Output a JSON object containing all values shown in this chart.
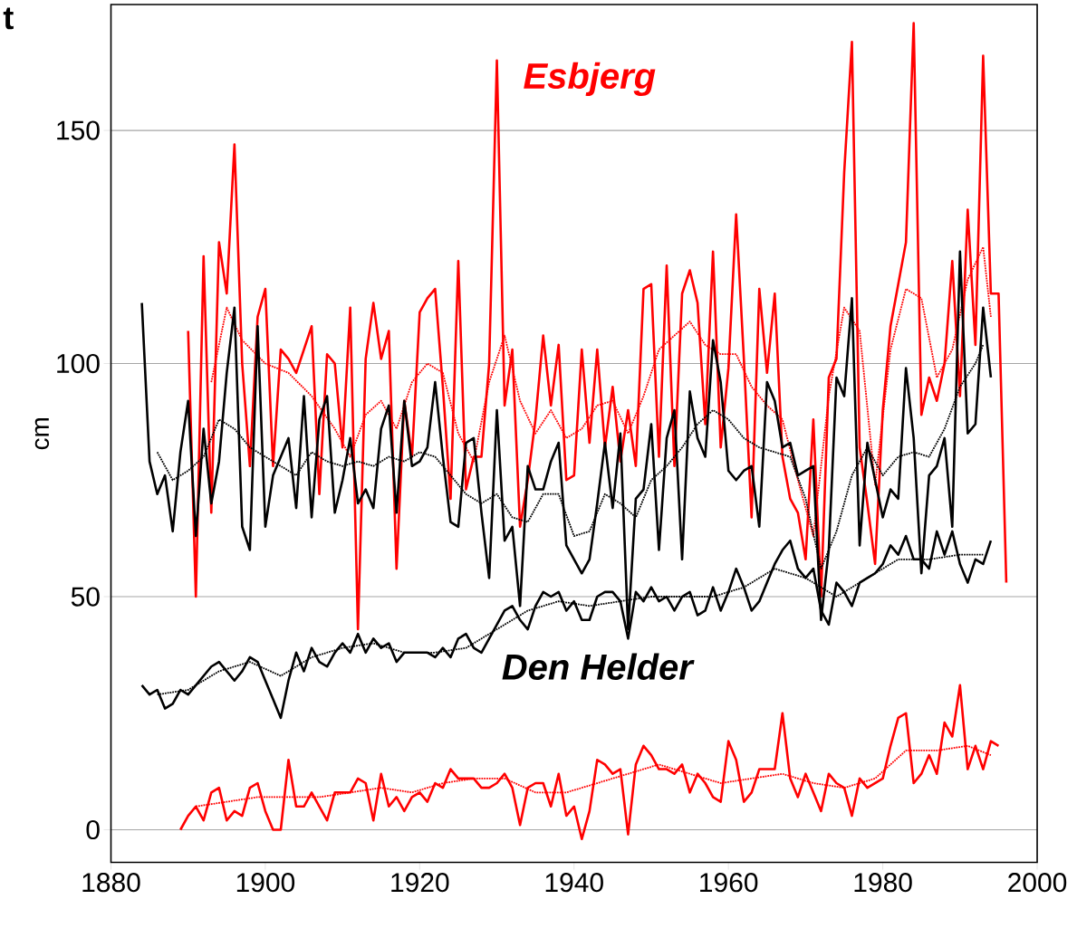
{
  "chart_data": {
    "type": "line",
    "ylabel": "cm",
    "xlim": [
      1880,
      2000
    ],
    "ylim": [
      -7,
      177
    ],
    "xticks": [
      1880,
      1900,
      1920,
      1940,
      1960,
      1980,
      2000
    ],
    "yticks": [
      0,
      50,
      100,
      150
    ],
    "grid": "y",
    "annotations": [
      "t"
    ],
    "series": [
      {
        "name": "Esbjerg",
        "color": "#ff0000",
        "line_style": "solid",
        "x": [
          1890,
          1891,
          1892,
          1893,
          1894,
          1895,
          1896,
          1897,
          1898,
          1899,
          1900,
          1901,
          1902,
          1903,
          1904,
          1905,
          1906,
          1907,
          1908,
          1909,
          1910,
          1911,
          1912,
          1913,
          1914,
          1915,
          1916,
          1917,
          1918,
          1919,
          1920,
          1921,
          1922,
          1923,
          1924,
          1925,
          1926,
          1927,
          1928,
          1929,
          1930,
          1931,
          1932,
          1933,
          1934,
          1935,
          1936,
          1937,
          1938,
          1939,
          1940,
          1941,
          1942,
          1943,
          1944,
          1945,
          1946,
          1947,
          1948,
          1949,
          1950,
          1951,
          1952,
          1953,
          1954,
          1955,
          1956,
          1957,
          1958,
          1959,
          1960,
          1961,
          1962,
          1963,
          1964,
          1965,
          1966,
          1967,
          1968,
          1969,
          1970,
          1971,
          1972,
          1973,
          1974,
          1975,
          1976,
          1977,
          1978,
          1979,
          1980,
          1981,
          1982,
          1983,
          1984,
          1985,
          1986,
          1987,
          1988,
          1989,
          1990,
          1991,
          1992,
          1993,
          1994,
          1995,
          1996
        ],
        "values": [
          107,
          50,
          123,
          68,
          126,
          115,
          147,
          100,
          78,
          110,
          116,
          78,
          103,
          101,
          98,
          103,
          108,
          72,
          102,
          100,
          82,
          112,
          43,
          101,
          113,
          101,
          107,
          56,
          92,
          80,
          111,
          114,
          116,
          95,
          71,
          122,
          73,
          80,
          80,
          100,
          165,
          91,
          103,
          65,
          75,
          88,
          106,
          91,
          104,
          75,
          76,
          103,
          83,
          103,
          82,
          95,
          79,
          90,
          78,
          116,
          117,
          80,
          121,
          78,
          115,
          120,
          113,
          87,
          124,
          82,
          99,
          132,
          101,
          67,
          116,
          98,
          115,
          80,
          71,
          68,
          58,
          88,
          50,
          97,
          101,
          141,
          169,
          82,
          70,
          57,
          90,
          108,
          117,
          126,
          173,
          89,
          97,
          92,
          100,
          122,
          93,
          133,
          104,
          166,
          115,
          115,
          53
        ]
      },
      {
        "color": "#ff0000",
        "line_style": "dotted",
        "x": [
          1893,
          1895,
          1897,
          1900,
          1903,
          1906,
          1909,
          1911,
          1913,
          1915,
          1917,
          1919,
          1921,
          1923,
          1925,
          1927,
          1929,
          1931,
          1933,
          1935,
          1937,
          1939,
          1941,
          1943,
          1945,
          1947,
          1949,
          1951,
          1953,
          1955,
          1957,
          1959,
          1961,
          1963,
          1965,
          1967,
          1969,
          1971,
          1973,
          1975,
          1977,
          1979,
          1981,
          1983,
          1985,
          1987,
          1989,
          1991,
          1993,
          1994
        ],
        "values": [
          96,
          112,
          105,
          100,
          98,
          93,
          86,
          80,
          89,
          92,
          86,
          96,
          100,
          98,
          85,
          79,
          96,
          106,
          92,
          85,
          90,
          84,
          86,
          91,
          92,
          85,
          93,
          103,
          106,
          109,
          104,
          102,
          102,
          95,
          91,
          88,
          75,
          63,
          93,
          112,
          107,
          74,
          103,
          116,
          114,
          97,
          103,
          118,
          125,
          110
        ]
      },
      {
        "color": "#000000",
        "line_style": "solid",
        "x": [
          1884,
          1885,
          1886,
          1887,
          1888,
          1889,
          1890,
          1891,
          1892,
          1893,
          1894,
          1895,
          1896,
          1897,
          1898,
          1899,
          1900,
          1901,
          1902,
          1903,
          1904,
          1905,
          1906,
          1907,
          1908,
          1909,
          1910,
          1911,
          1912,
          1913,
          1914,
          1915,
          1916,
          1917,
          1918,
          1919,
          1920,
          1921,
          1922,
          1923,
          1924,
          1925,
          1926,
          1927,
          1928,
          1929,
          1930,
          1931,
          1932,
          1933,
          1934,
          1935,
          1936,
          1937,
          1938,
          1939,
          1940,
          1941,
          1942,
          1943,
          1944,
          1945,
          1946,
          1947,
          1948,
          1949,
          1950,
          1951,
          1952,
          1953,
          1954,
          1955,
          1956,
          1957,
          1958,
          1959,
          1960,
          1961,
          1962,
          1963,
          1964,
          1965,
          1966,
          1967,
          1968,
          1969,
          1970,
          1971,
          1972,
          1973,
          1974,
          1975,
          1976,
          1977,
          1978,
          1979,
          1980,
          1981,
          1982,
          1983,
          1984,
          1985,
          1986,
          1987,
          1988,
          1989,
          1990,
          1991,
          1992,
          1993,
          1994
        ],
        "values": [
          113,
          79,
          72,
          76,
          64,
          81,
          92,
          63,
          86,
          70,
          79,
          98,
          112,
          65,
          60,
          108,
          65,
          76,
          80,
          84,
          69,
          93,
          67,
          88,
          93,
          68,
          75,
          84,
          70,
          73,
          69,
          86,
          91,
          68,
          92,
          78,
          79,
          82,
          96,
          80,
          66,
          65,
          83,
          84,
          68,
          54,
          90,
          62,
          65,
          48,
          78,
          73,
          73,
          79,
          83,
          61,
          58,
          55,
          58,
          70,
          83,
          69,
          85,
          43,
          71,
          73,
          87,
          60,
          84,
          90,
          58,
          94,
          84,
          80,
          105,
          96,
          77,
          75,
          77,
          78,
          65,
          96,
          92,
          82,
          83,
          76,
          77,
          78,
          45,
          60,
          97,
          93,
          114,
          61,
          83,
          75,
          67,
          73,
          71,
          99,
          84,
          55,
          76,
          78,
          84,
          65,
          124,
          85,
          87,
          112,
          97
        ]
      },
      {
        "color": "#000000",
        "line_style": "dotted",
        "x": [
          1886,
          1888,
          1890,
          1892,
          1894,
          1896,
          1898,
          1900,
          1902,
          1904,
          1906,
          1908,
          1910,
          1912,
          1914,
          1916,
          1918,
          1920,
          1922,
          1924,
          1926,
          1928,
          1930,
          1932,
          1934,
          1936,
          1938,
          1940,
          1942,
          1944,
          1946,
          1948,
          1950,
          1952,
          1954,
          1956,
          1958,
          1960,
          1962,
          1964,
          1966,
          1968,
          1970,
          1972,
          1974,
          1976,
          1978,
          1980,
          1982,
          1984,
          1986,
          1988,
          1990,
          1992,
          1993
        ],
        "values": [
          81,
          75,
          77,
          80,
          88,
          86,
          82,
          80,
          78,
          76,
          81,
          79,
          78,
          79,
          78,
          80,
          79,
          81,
          80,
          76,
          72,
          70,
          72,
          67,
          66,
          72,
          72,
          63,
          64,
          72,
          70,
          67,
          75,
          78,
          82,
          87,
          90,
          88,
          84,
          82,
          81,
          80,
          71,
          56,
          64,
          76,
          82,
          76,
          80,
          81,
          80,
          86,
          95,
          100,
          104
        ]
      },
      {
        "name": "Den Helder",
        "color": "#000000",
        "line_style": "solid",
        "x": [
          1884,
          1885,
          1886,
          1887,
          1888,
          1889,
          1890,
          1891,
          1892,
          1893,
          1894,
          1895,
          1896,
          1897,
          1898,
          1899,
          1900,
          1901,
          1902,
          1903,
          1904,
          1905,
          1906,
          1907,
          1908,
          1909,
          1910,
          1911,
          1912,
          1913,
          1914,
          1915,
          1916,
          1917,
          1918,
          1919,
          1920,
          1921,
          1922,
          1923,
          1924,
          1925,
          1926,
          1927,
          1928,
          1929,
          1930,
          1931,
          1932,
          1933,
          1934,
          1935,
          1936,
          1937,
          1938,
          1939,
          1940,
          1941,
          1942,
          1943,
          1944,
          1945,
          1946,
          1947,
          1948,
          1949,
          1950,
          1951,
          1952,
          1953,
          1954,
          1955,
          1956,
          1957,
          1958,
          1959,
          1960,
          1961,
          1962,
          1963,
          1964,
          1965,
          1966,
          1967,
          1968,
          1969,
          1970,
          1971,
          1972,
          1973,
          1974,
          1975,
          1976,
          1977,
          1978,
          1979,
          1980,
          1981,
          1982,
          1983,
          1984,
          1985,
          1986,
          1987,
          1988,
          1989,
          1990,
          1991,
          1992,
          1993,
          1994
        ],
        "values": [
          31,
          29,
          30,
          26,
          27,
          30,
          29,
          31,
          33,
          35,
          36,
          34,
          32,
          34,
          37,
          36,
          32,
          28,
          24,
          32,
          38,
          34,
          39,
          36,
          35,
          38,
          40,
          38,
          42,
          38,
          41,
          39,
          40,
          36,
          38,
          38,
          38,
          38,
          37,
          39,
          37,
          41,
          42,
          39,
          38,
          41,
          44,
          47,
          48,
          45,
          43,
          48,
          51,
          50,
          51,
          47,
          49,
          45,
          45,
          50,
          51,
          51,
          49,
          41,
          51,
          49,
          52,
          49,
          50,
          47,
          50,
          51,
          46,
          47,
          52,
          47,
          51,
          56,
          52,
          47,
          49,
          53,
          57,
          60,
          62,
          56,
          54,
          56,
          47,
          44,
          53,
          51,
          48,
          53,
          54,
          55,
          57,
          61,
          59,
          63,
          58,
          58,
          56,
          64,
          59,
          64,
          57,
          53,
          58,
          57,
          62
        ]
      },
      {
        "color": "#000000",
        "line_style": "dotted",
        "x": [
          1886,
          1890,
          1894,
          1898,
          1902,
          1906,
          1910,
          1914,
          1918,
          1922,
          1926,
          1930,
          1934,
          1938,
          1942,
          1946,
          1950,
          1954,
          1958,
          1962,
          1966,
          1970,
          1974,
          1978,
          1982,
          1986,
          1990,
          1993
        ],
        "values": [
          29,
          30,
          34,
          36,
          33,
          37,
          39,
          40,
          38,
          38,
          39,
          43,
          47,
          49,
          48,
          49,
          50,
          50,
          50,
          52,
          56,
          54,
          50,
          54,
          58,
          58,
          59,
          59
        ]
      },
      {
        "color": "#ff0000",
        "line_style": "solid",
        "x": [
          1889,
          1890,
          1891,
          1892,
          1893,
          1894,
          1895,
          1896,
          1897,
          1898,
          1899,
          1900,
          1901,
          1902,
          1903,
          1904,
          1905,
          1906,
          1907,
          1908,
          1909,
          1910,
          1911,
          1912,
          1913,
          1914,
          1915,
          1916,
          1917,
          1918,
          1919,
          1920,
          1921,
          1922,
          1923,
          1924,
          1925,
          1926,
          1927,
          1928,
          1929,
          1930,
          1931,
          1932,
          1933,
          1934,
          1935,
          1936,
          1937,
          1938,
          1939,
          1940,
          1941,
          1942,
          1943,
          1944,
          1945,
          1946,
          1947,
          1948,
          1949,
          1950,
          1951,
          1952,
          1953,
          1954,
          1955,
          1956,
          1957,
          1958,
          1959,
          1960,
          1961,
          1962,
          1963,
          1964,
          1965,
          1966,
          1967,
          1968,
          1969,
          1970,
          1971,
          1972,
          1973,
          1974,
          1975,
          1976,
          1977,
          1978,
          1979,
          1980,
          1981,
          1982,
          1983,
          1984,
          1985,
          1986,
          1987,
          1988,
          1989,
          1990,
          1991,
          1992,
          1993,
          1994,
          1995
        ],
        "values": [
          0,
          3,
          5,
          2,
          8,
          9,
          2,
          4,
          3,
          9,
          10,
          4,
          0,
          0,
          15,
          5,
          5,
          8,
          5,
          2,
          8,
          8,
          8,
          11,
          10,
          2,
          12,
          5,
          7,
          4,
          7,
          8,
          6,
          10,
          9,
          13,
          11,
          11,
          11,
          9,
          9,
          10,
          12,
          9,
          1,
          9,
          10,
          10,
          5,
          12,
          3,
          5,
          -2,
          4,
          15,
          14,
          12,
          13,
          -1,
          14,
          18,
          16,
          13,
          13,
          12,
          14,
          8,
          12,
          10,
          7,
          6,
          19,
          15,
          6,
          8,
          13,
          13,
          13,
          25,
          11,
          7,
          12,
          8,
          4,
          12,
          10,
          9,
          3,
          11,
          9,
          10,
          11,
          18,
          24,
          25,
          10,
          12,
          16,
          12,
          23,
          20,
          31,
          13,
          18,
          13,
          19,
          18
        ]
      },
      {
        "color": "#ff0000",
        "line_style": "dotted",
        "x": [
          1891,
          1895,
          1899,
          1903,
          1907,
          1911,
          1915,
          1919,
          1923,
          1927,
          1931,
          1935,
          1939,
          1943,
          1947,
          1951,
          1955,
          1959,
          1963,
          1967,
          1971,
          1975,
          1979,
          1983,
          1987,
          1991,
          1994
        ],
        "values": [
          5,
          6,
          7,
          7,
          7,
          8,
          9,
          8,
          10,
          11,
          11,
          8,
          8,
          10,
          12,
          14,
          12,
          10,
          11,
          12,
          10,
          9,
          11,
          17,
          17,
          18,
          16
        ]
      }
    ]
  }
}
